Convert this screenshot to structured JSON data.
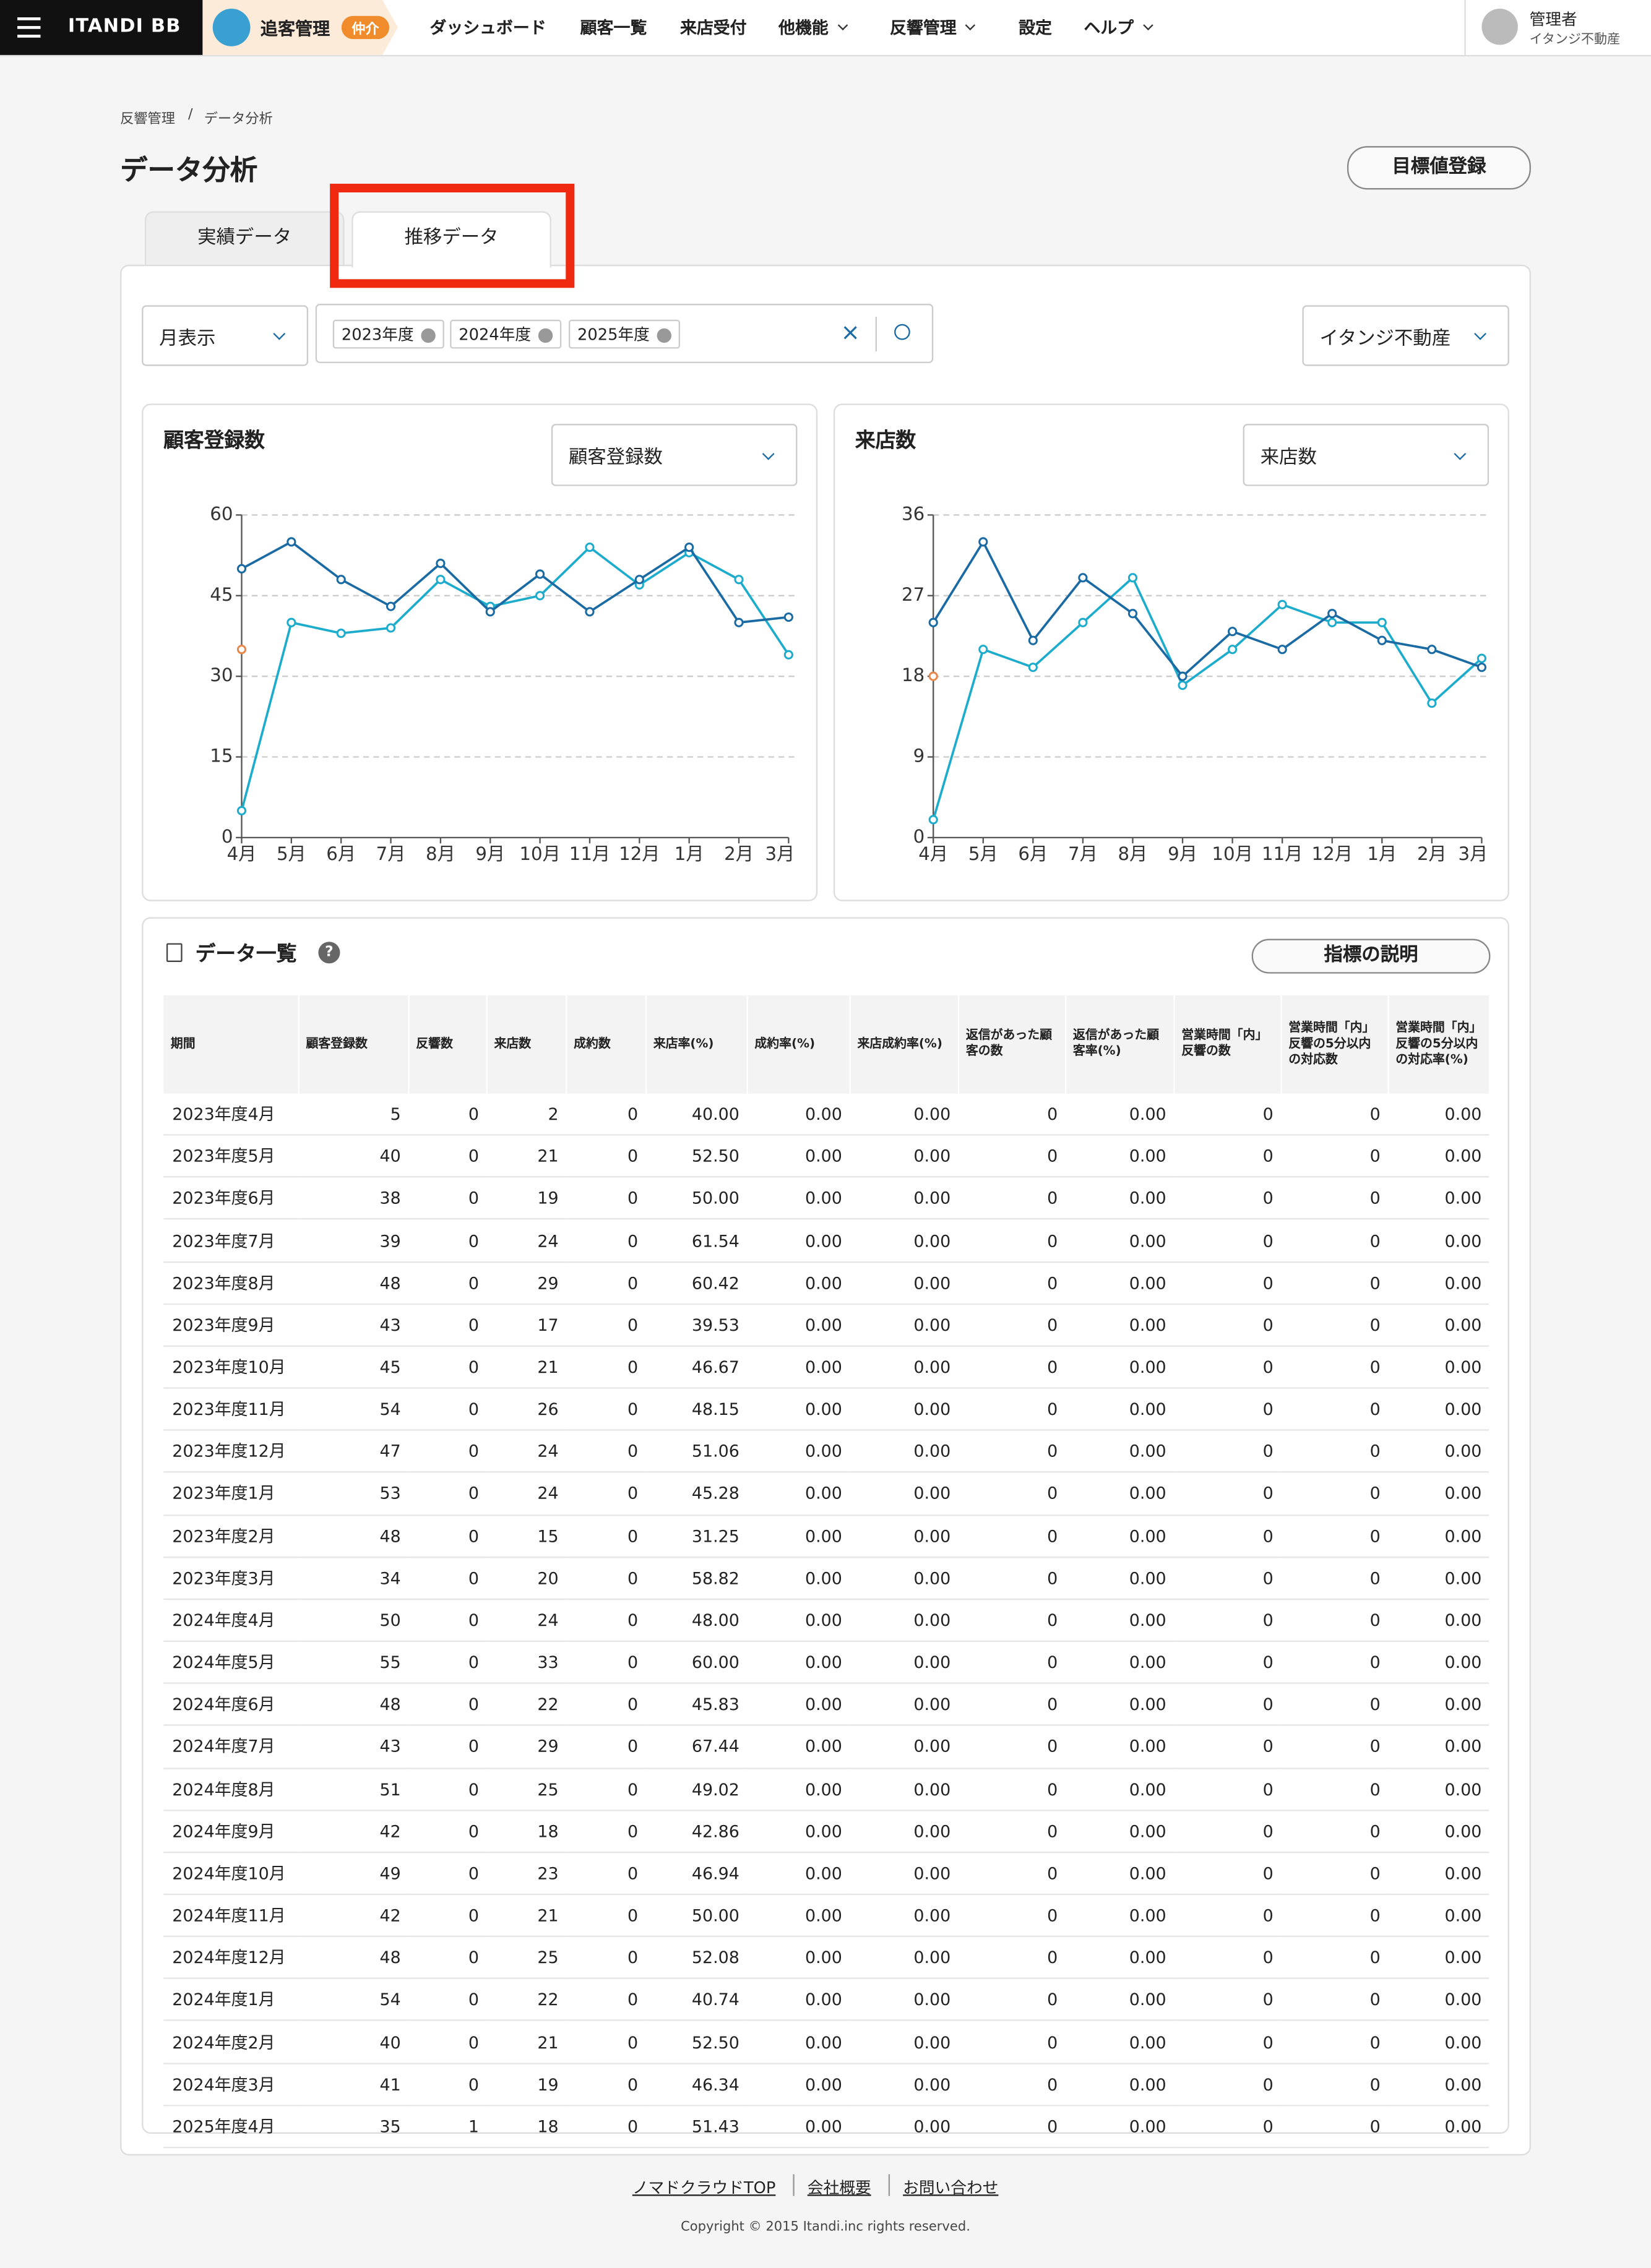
{
  "header": {
    "logo": "ITANDI BB",
    "product": "追客管理",
    "badge": "仲介",
    "nav": [
      "ダッシュボード",
      "顧客一覧",
      "来店受付",
      "他機能",
      "反響管理",
      "設定",
      "ヘルプ"
    ],
    "user": "管理者",
    "company": "イタンジ不動産"
  },
  "breadcrumb": [
    "反響管理",
    "データ分析"
  ],
  "page": {
    "title": "データ分析",
    "button": "目標値登録",
    "tabs": [
      "実績データ",
      "推移データ"
    ]
  },
  "filters": {
    "period": "月表示",
    "years": [
      "2023年度",
      "2024年度",
      "2025年度"
    ],
    "store": "イタンジ不動産"
  },
  "chart_data": [
    {
      "type": "line",
      "title": "顧客登録数",
      "selector": "顧客登録数",
      "categories": [
        "4月",
        "5月",
        "6月",
        "7月",
        "8月",
        "9月",
        "10月",
        "11月",
        "12月",
        "1月",
        "2月",
        "3月"
      ],
      "series": [
        {
          "color": "#1eaccd",
          "values": [
            5,
            40,
            38,
            39,
            48,
            43,
            45,
            54,
            47,
            53,
            48,
            34
          ]
        },
        {
          "color": "#1a6aa3",
          "values": [
            50,
            55,
            48,
            43,
            51,
            42,
            49,
            42,
            48,
            54,
            40,
            41
          ]
        },
        {
          "color": "#e8884a",
          "values": [
            35,
            null,
            null,
            null,
            null,
            null,
            null,
            null,
            null,
            null,
            null,
            null
          ]
        }
      ],
      "ylim": [
        0,
        60
      ],
      "yticks": [
        0,
        15,
        30,
        45,
        60
      ],
      "grid": true
    },
    {
      "type": "line",
      "title": "来店数",
      "selector": "来店数",
      "categories": [
        "4月",
        "5月",
        "6月",
        "7月",
        "8月",
        "9月",
        "10月",
        "11月",
        "12月",
        "1月",
        "2月",
        "3月"
      ],
      "series": [
        {
          "color": "#1eaccd",
          "values": [
            2,
            21,
            19,
            24,
            29,
            17,
            21,
            26,
            24,
            24,
            15,
            20
          ]
        },
        {
          "color": "#1a6aa3",
          "values": [
            24,
            33,
            22,
            29,
            25,
            18,
            23,
            21,
            25,
            22,
            21,
            19
          ]
        },
        {
          "color": "#e8884a",
          "values": [
            18,
            null,
            null,
            null,
            null,
            null,
            null,
            null,
            null,
            null,
            null,
            null
          ]
        }
      ],
      "ylim": [
        0,
        36
      ],
      "yticks": [
        0,
        9,
        18,
        27,
        36
      ],
      "grid": true
    }
  ],
  "table": {
    "title": "データ一覧",
    "button": "指標の説明",
    "columns": [
      "期間",
      "顧客登録数",
      "反響数",
      "来店数",
      "成約数",
      "来店率(%)",
      "成約率(%)",
      "来店成約率(%)",
      "返信があった顧客の数",
      "返信があった顧客率(%)",
      "営業時間「内」反響の数",
      "営業時間「内」反響の5分以内の対応数",
      "営業時間「内」反響の5分以内の対応率(%)"
    ],
    "rows": [
      [
        "2023年度4月",
        "5",
        "0",
        "2",
        "0",
        "40.00",
        "0.00",
        "0.00",
        "0",
        "0.00",
        "0",
        "0",
        "0.00"
      ],
      [
        "2023年度5月",
        "40",
        "0",
        "21",
        "0",
        "52.50",
        "0.00",
        "0.00",
        "0",
        "0.00",
        "0",
        "0",
        "0.00"
      ],
      [
        "2023年度6月",
        "38",
        "0",
        "19",
        "0",
        "50.00",
        "0.00",
        "0.00",
        "0",
        "0.00",
        "0",
        "0",
        "0.00"
      ],
      [
        "2023年度7月",
        "39",
        "0",
        "24",
        "0",
        "61.54",
        "0.00",
        "0.00",
        "0",
        "0.00",
        "0",
        "0",
        "0.00"
      ],
      [
        "2023年度8月",
        "48",
        "0",
        "29",
        "0",
        "60.42",
        "0.00",
        "0.00",
        "0",
        "0.00",
        "0",
        "0",
        "0.00"
      ],
      [
        "2023年度9月",
        "43",
        "0",
        "17",
        "0",
        "39.53",
        "0.00",
        "0.00",
        "0",
        "0.00",
        "0",
        "0",
        "0.00"
      ],
      [
        "2023年度10月",
        "45",
        "0",
        "21",
        "0",
        "46.67",
        "0.00",
        "0.00",
        "0",
        "0.00",
        "0",
        "0",
        "0.00"
      ],
      [
        "2023年度11月",
        "54",
        "0",
        "26",
        "0",
        "48.15",
        "0.00",
        "0.00",
        "0",
        "0.00",
        "0",
        "0",
        "0.00"
      ],
      [
        "2023年度12月",
        "47",
        "0",
        "24",
        "0",
        "51.06",
        "0.00",
        "0.00",
        "0",
        "0.00",
        "0",
        "0",
        "0.00"
      ],
      [
        "2023年度1月",
        "53",
        "0",
        "24",
        "0",
        "45.28",
        "0.00",
        "0.00",
        "0",
        "0.00",
        "0",
        "0",
        "0.00"
      ],
      [
        "2023年度2月",
        "48",
        "0",
        "15",
        "0",
        "31.25",
        "0.00",
        "0.00",
        "0",
        "0.00",
        "0",
        "0",
        "0.00"
      ],
      [
        "2023年度3月",
        "34",
        "0",
        "20",
        "0",
        "58.82",
        "0.00",
        "0.00",
        "0",
        "0.00",
        "0",
        "0",
        "0.00"
      ],
      [
        "2024年度4月",
        "50",
        "0",
        "24",
        "0",
        "48.00",
        "0.00",
        "0.00",
        "0",
        "0.00",
        "0",
        "0",
        "0.00"
      ],
      [
        "2024年度5月",
        "55",
        "0",
        "33",
        "0",
        "60.00",
        "0.00",
        "0.00",
        "0",
        "0.00",
        "0",
        "0",
        "0.00"
      ],
      [
        "2024年度6月",
        "48",
        "0",
        "22",
        "0",
        "45.83",
        "0.00",
        "0.00",
        "0",
        "0.00",
        "0",
        "0",
        "0.00"
      ],
      [
        "2024年度7月",
        "43",
        "0",
        "29",
        "0",
        "67.44",
        "0.00",
        "0.00",
        "0",
        "0.00",
        "0",
        "0",
        "0.00"
      ],
      [
        "2024年度8月",
        "51",
        "0",
        "25",
        "0",
        "49.02",
        "0.00",
        "0.00",
        "0",
        "0.00",
        "0",
        "0",
        "0.00"
      ],
      [
        "2024年度9月",
        "42",
        "0",
        "18",
        "0",
        "42.86",
        "0.00",
        "0.00",
        "0",
        "0.00",
        "0",
        "0",
        "0.00"
      ],
      [
        "2024年度10月",
        "49",
        "0",
        "23",
        "0",
        "46.94",
        "0.00",
        "0.00",
        "0",
        "0.00",
        "0",
        "0",
        "0.00"
      ],
      [
        "2024年度11月",
        "42",
        "0",
        "21",
        "0",
        "50.00",
        "0.00",
        "0.00",
        "0",
        "0.00",
        "0",
        "0",
        "0.00"
      ],
      [
        "2024年度12月",
        "48",
        "0",
        "25",
        "0",
        "52.08",
        "0.00",
        "0.00",
        "0",
        "0.00",
        "0",
        "0",
        "0.00"
      ],
      [
        "2024年度1月",
        "54",
        "0",
        "22",
        "0",
        "40.74",
        "0.00",
        "0.00",
        "0",
        "0.00",
        "0",
        "0",
        "0.00"
      ],
      [
        "2024年度2月",
        "40",
        "0",
        "21",
        "0",
        "52.50",
        "0.00",
        "0.00",
        "0",
        "0.00",
        "0",
        "0",
        "0.00"
      ],
      [
        "2024年度3月",
        "41",
        "0",
        "19",
        "0",
        "46.34",
        "0.00",
        "0.00",
        "0",
        "0.00",
        "0",
        "0",
        "0.00"
      ],
      [
        "2025年度4月",
        "35",
        "1",
        "18",
        "0",
        "51.43",
        "0.00",
        "0.00",
        "0",
        "0.00",
        "0",
        "0",
        "0.00"
      ]
    ]
  },
  "footer": {
    "links": [
      "ノマドクラウドTOP",
      "会社概要",
      "お問い合わせ"
    ],
    "copyright": "Copyright © 2015 Itandi.inc rights reserved."
  }
}
